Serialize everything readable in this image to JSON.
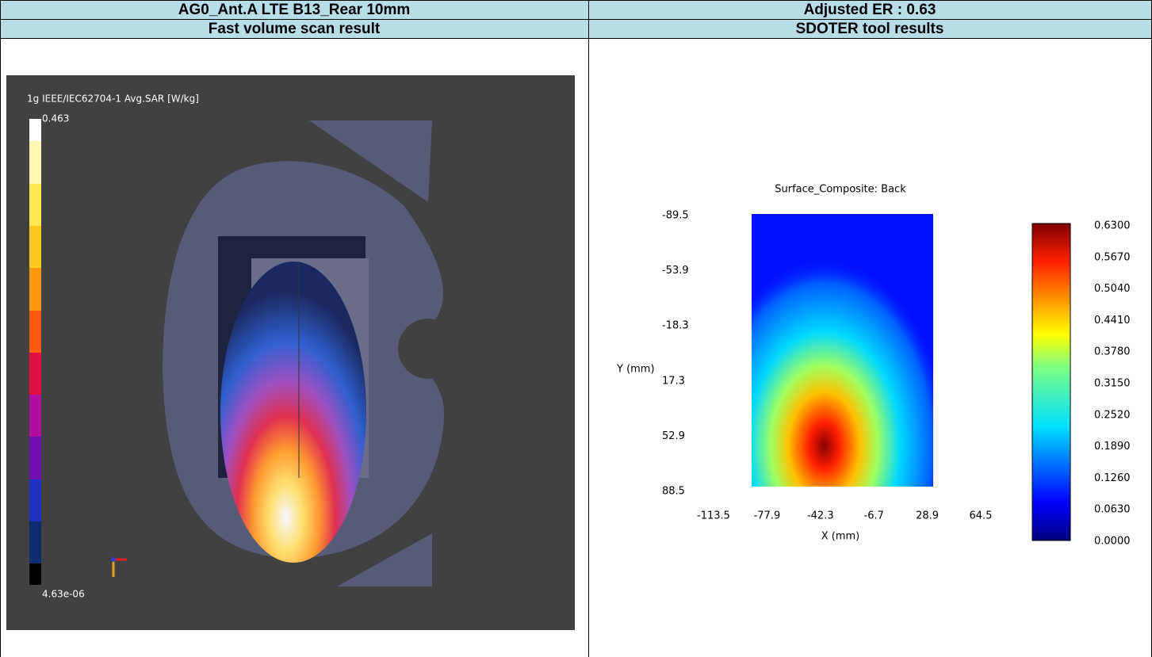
{
  "table": {
    "rows": [
      [
        "AG0_Ant.A LTE B13_Rear 10mm",
        "Adjusted ER : 0.63"
      ],
      [
        "Fast volume scan result",
        "SDOTER tool results"
      ]
    ]
  },
  "left_image": {
    "legend_title": "1g IEEE/IEC62704-1 Avg.SAR [W/kg]",
    "max_label": "0.463",
    "min_label": "4.63e-06"
  },
  "right_image": {
    "title": "Surface_Composite: Back",
    "y_label": "Y (mm)",
    "x_label": "X (mm)",
    "y_ticks": [
      "-89.5",
      "-53.9",
      "-18.3",
      "17.3",
      "52.9",
      "88.5"
    ],
    "x_ticks": [
      "-113.5",
      "-77.9",
      "-42.3",
      "-6.7",
      "28.9",
      "64.5"
    ],
    "colorbar_ticks": [
      "0.6300",
      "0.5670",
      "0.5040",
      "0.4410",
      "0.3780",
      "0.3150",
      "0.2520",
      "0.1890",
      "0.1260",
      "0.0630",
      "0.0000"
    ]
  }
}
